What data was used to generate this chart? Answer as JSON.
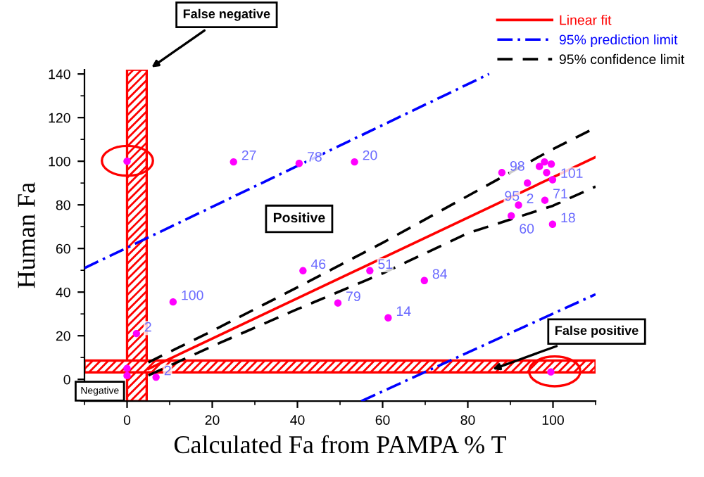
{
  "chart_data": {
    "type": "scatter",
    "xlabel": "Calculated Fa from PAMPA % T",
    "ylabel": "Human Fa",
    "xlim": [
      -10,
      110
    ],
    "ylim": [
      -10,
      142
    ],
    "xticks": [
      0,
      20,
      40,
      60,
      80,
      100
    ],
    "yticks": [
      0,
      20,
      40,
      60,
      80,
      100,
      120,
      140
    ],
    "grid": false,
    "legend": "top right",
    "series": [
      {
        "marker": "circle",
        "color": "#ff00ff",
        "x": [
          0,
          25,
          40.4,
          53.4,
          41.3,
          10.8,
          2.2,
          49.5,
          57,
          69.8,
          61.3,
          88,
          91.9,
          90.2,
          94,
          99.9,
          98.1,
          99.9,
          96.8,
          98.5,
          99.6,
          98,
          0,
          0,
          6.8,
          99.5
        ],
        "values": [
          100,
          99.7,
          99,
          99.7,
          49.8,
          35.5,
          21,
          35,
          49.8,
          45.3,
          28.2,
          94.8,
          79.9,
          75,
          90,
          91.5,
          82.1,
          71.1,
          97.6,
          94.8,
          98.7,
          99.7,
          5,
          1.7,
          1,
          3.4
        ]
      },
      {
        "type": "line",
        "name": "Linear fit",
        "color": "#ff0000",
        "line_style": "solid",
        "x": [
          5,
          110
        ],
        "values": [
          4.8,
          101.9
        ]
      },
      {
        "type": "line",
        "name": "95% prediction limit",
        "color": "#0000ff",
        "line_style": "dashdot",
        "x": [
          -10,
          85
        ],
        "values": [
          51,
          140
        ]
      },
      {
        "type": "line",
        "color": "#0000ff",
        "line_style": "dashdot",
        "x": [
          55,
          110
        ],
        "values": [
          -10,
          39
        ]
      },
      {
        "type": "line",
        "name": "95% confidence limit",
        "color": "#000000",
        "line_style": "dashed",
        "x": [
          5,
          20,
          40,
          60,
          80,
          100,
          110
        ],
        "values": [
          7.8,
          22.2,
          42.2,
          62.6,
          84.1,
          105.6,
          115.4
        ]
      },
      {
        "type": "line",
        "color": "#000000",
        "line_style": "dashed",
        "x": [
          5,
          20,
          40,
          60,
          80,
          100,
          110
        ],
        "values": [
          1.8,
          15.2,
          32.2,
          48.6,
          67,
          79.6,
          88.4
        ]
      }
    ],
    "bands": [
      {
        "axis": "x",
        "from": 0,
        "to": 4.6,
        "color": "#ff0000"
      },
      {
        "axis": "y",
        "from": 3.2,
        "to": 8.6,
        "color": "#ff0000"
      }
    ],
    "annotations": [
      {
        "text": "False negative",
        "x": 5,
        "y": 142
      },
      "Positive",
      {
        "text": "False positive",
        "x": 85,
        "y": 4
      },
      "Negative",
      {
        "text": "27",
        "x": 25,
        "y": 99.7
      },
      {
        "text": "78",
        "x": 40.4,
        "y": 99
      },
      {
        "text": "20",
        "x": 53.4,
        "y": 99.7
      },
      {
        "text": "46",
        "x": 41.3,
        "y": 49.8
      },
      {
        "text": "100",
        "x": 10.8,
        "y": 35.5
      },
      {
        "text": "2",
        "x": 2.2,
        "y": 21
      },
      {
        "text": "79",
        "x": 49.5,
        "y": 35
      },
      {
        "text": "51",
        "x": 57,
        "y": 49.8
      },
      {
        "text": "84",
        "x": 69.8,
        "y": 45.3
      },
      {
        "text": "14",
        "x": 61.3,
        "y": 28.2
      },
      {
        "text": "98",
        "x": 88,
        "y": 94.8
      },
      {
        "text": "2",
        "x": 91.9,
        "y": 79.9
      },
      {
        "text": "60",
        "x": 90.2,
        "y": 75
      },
      {
        "text": "95",
        "x": 94,
        "y": 90
      },
      {
        "text": "101",
        "x": 99.9,
        "y": 91.5
      },
      {
        "text": "71",
        "x": 98.1,
        "y": 82.1
      },
      {
        "text": "18",
        "x": 99.9,
        "y": 71.1
      },
      {
        "text": "2",
        "x": 6.8,
        "y": 1
      }
    ]
  }
}
